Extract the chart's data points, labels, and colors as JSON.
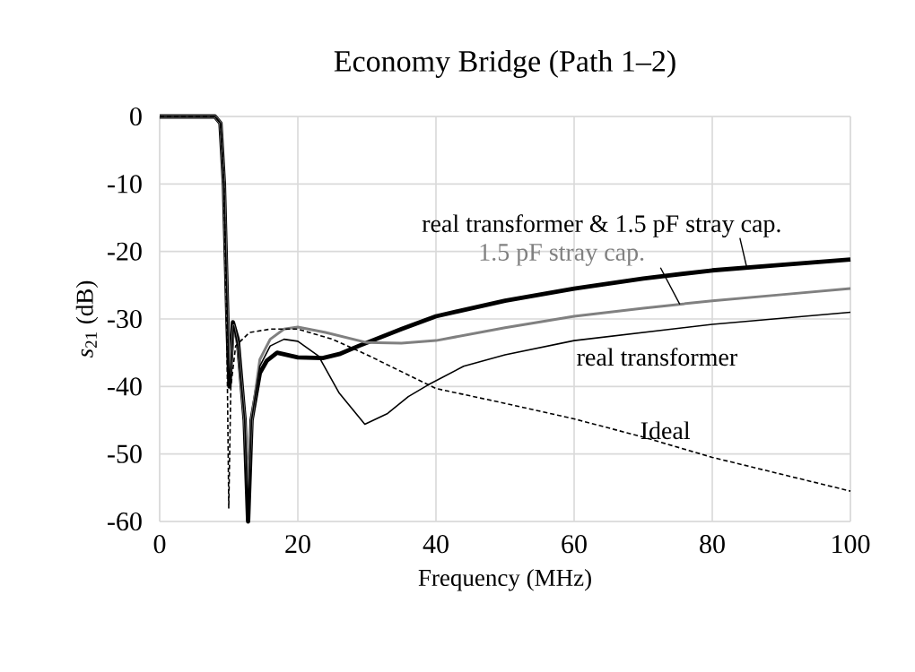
{
  "chart_data": {
    "type": "line",
    "title": "Economy Bridge (Path 1–2)",
    "xlabel": "Frequency (MHz)",
    "ylabel": "*s*$_{21}$ (dB)",
    "xlim": [
      0,
      100
    ],
    "ylim": [
      -60,
      0
    ],
    "xticks": [
      0,
      20,
      40,
      60,
      80,
      100
    ],
    "yticks": [
      0,
      -10,
      -20,
      -30,
      -40,
      -50,
      -60
    ],
    "grid": true,
    "marker": "none",
    "series": [
      {
        "name": "real transformer & 1.5 pF stray cap.",
        "color": "#000000",
        "x": [
          0,
          8,
          8.8,
          9.3,
          9.8,
          10.1,
          10.6,
          11.3,
          12.3,
          12.8,
          13.3,
          14.5,
          15.5,
          17,
          20,
          23.6,
          26,
          28.8,
          35,
          40,
          50,
          60,
          70,
          80,
          90,
          100
        ],
        "values": [
          0,
          0,
          -1,
          -10,
          -30,
          -40,
          -30.5,
          -33,
          -45,
          -60,
          -45,
          -38,
          -36.2,
          -35,
          -35.7,
          -35.8,
          -35.2,
          -34,
          -31.5,
          -29.6,
          -27.3,
          -25.5,
          -24,
          -22.8,
          -22,
          -21.2
        ]
      },
      {
        "name": "1.5 pF stray cap.",
        "color": "#808080",
        "x": [
          0,
          8,
          8.8,
          9.3,
          9.8,
          10.2,
          10.7,
          11.3,
          12.3,
          12.8,
          13.3,
          14.5,
          16,
          18,
          20,
          24,
          30,
          35,
          40,
          50,
          60,
          70,
          80,
          90,
          100
        ],
        "values": [
          0,
          0,
          -1,
          -10,
          -30,
          -38,
          -31,
          -34,
          -45,
          -55,
          -45,
          -36,
          -33,
          -31.5,
          -31.2,
          -32,
          -33.5,
          -33.6,
          -33.2,
          -31.3,
          -29.6,
          -28.4,
          -27.3,
          -26.4,
          -25.5
        ]
      },
      {
        "name": "real transformer",
        "color": "#000000",
        "x": [
          0,
          8,
          8.8,
          9.3,
          9.8,
          10.1,
          10.7,
          11.3,
          12.3,
          12.8,
          13.3,
          14.5,
          16,
          18,
          20,
          23,
          26,
          29.7,
          33,
          36,
          38.8,
          44,
          50,
          60,
          70,
          80,
          90,
          100
        ],
        "values": [
          0,
          0,
          -1,
          -10,
          -30,
          -40,
          -31,
          -34,
          -45,
          -58,
          -45,
          -37,
          -34,
          -33,
          -33.3,
          -35.5,
          -41,
          -45.6,
          -44,
          -41.5,
          -39.8,
          -37,
          -35.3,
          -33.2,
          -32,
          -30.8,
          -29.9,
          -29
        ]
      },
      {
        "name": "Ideal",
        "color": "#000000",
        "line_style": "dashed",
        "x": [
          0,
          8,
          8.8,
          9.3,
          9.7,
          10,
          10.3,
          11,
          13,
          16,
          20,
          25,
          30,
          40,
          50,
          60,
          70,
          80,
          90,
          100
        ],
        "values": [
          0,
          0,
          -1,
          -10,
          -30,
          -58,
          -40,
          -34,
          -32,
          -31.5,
          -31.5,
          -33,
          -35.3,
          -40.3,
          -42.5,
          -44.8,
          -47.5,
          -50.5,
          -53,
          -55.5
        ]
      }
    ]
  }
}
